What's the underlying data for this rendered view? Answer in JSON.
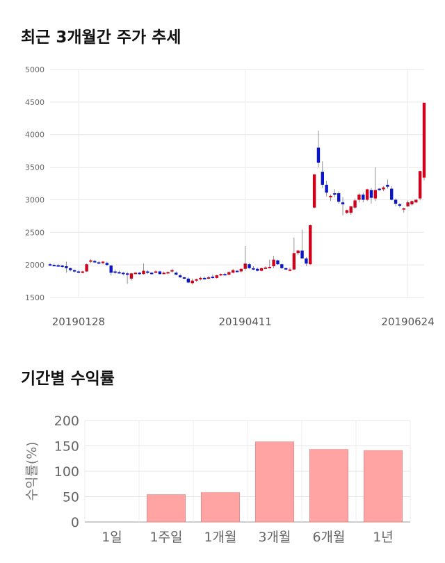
{
  "sections": {
    "price_title": "최근 3개월간 주가 추세",
    "returns_title": "기간별 수익률"
  },
  "colors": {
    "up": "#d0021b",
    "down": "#0a14c8",
    "bar": "#ffa3a3",
    "bar_border": "#e08080"
  },
  "chart_data": [
    {
      "type": "candlestick",
      "title": "최근 3개월간 주가 추세",
      "ylim": [
        1500,
        5000
      ],
      "yticks": [
        1500,
        2000,
        2500,
        3000,
        3500,
        4000,
        4500,
        5000
      ],
      "xtick_labels": [
        {
          "index": 7,
          "label": "20190128"
        },
        {
          "index": 48,
          "label": "20190411"
        },
        {
          "index": 88,
          "label": "20190624"
        }
      ],
      "grid": true,
      "candles": [
        {
          "o": 2010,
          "h": 2030,
          "l": 1990,
          "c": 2000
        },
        {
          "o": 2000,
          "h": 2020,
          "l": 1985,
          "c": 1995
        },
        {
          "o": 1995,
          "h": 2015,
          "l": 1980,
          "c": 1990
        },
        {
          "o": 1990,
          "h": 2000,
          "l": 1960,
          "c": 1975
        },
        {
          "o": 1980,
          "h": 2050,
          "l": 1880,
          "c": 1950
        },
        {
          "o": 1950,
          "h": 1960,
          "l": 1900,
          "c": 1920
        },
        {
          "o": 1920,
          "h": 1930,
          "l": 1880,
          "c": 1900
        },
        {
          "o": 1900,
          "h": 1920,
          "l": 1880,
          "c": 1890
        },
        {
          "o": 1890,
          "h": 1910,
          "l": 1870,
          "c": 1900
        },
        {
          "o": 1900,
          "h": 2020,
          "l": 1890,
          "c": 2010
        },
        {
          "o": 2060,
          "h": 2090,
          "l": 2030,
          "c": 2070
        },
        {
          "o": 2060,
          "h": 2080,
          "l": 2030,
          "c": 2040
        },
        {
          "o": 2040,
          "h": 2060,
          "l": 2020,
          "c": 2030
        },
        {
          "o": 2030,
          "h": 2060,
          "l": 2010,
          "c": 2050
        },
        {
          "o": 2030,
          "h": 2050,
          "l": 1980,
          "c": 2000
        },
        {
          "o": 1990,
          "h": 2000,
          "l": 1840,
          "c": 1880
        },
        {
          "o": 1900,
          "h": 1930,
          "l": 1860,
          "c": 1890
        },
        {
          "o": 1890,
          "h": 1910,
          "l": 1870,
          "c": 1880
        },
        {
          "o": 1880,
          "h": 1890,
          "l": 1840,
          "c": 1870
        },
        {
          "o": 1870,
          "h": 1890,
          "l": 1710,
          "c": 1860
        },
        {
          "o": 1790,
          "h": 1880,
          "l": 1760,
          "c": 1870
        },
        {
          "o": 1870,
          "h": 1890,
          "l": 1860,
          "c": 1880
        },
        {
          "o": 1880,
          "h": 1890,
          "l": 1850,
          "c": 1860
        },
        {
          "o": 1860,
          "h": 2020,
          "l": 1850,
          "c": 1910
        },
        {
          "o": 1900,
          "h": 1920,
          "l": 1860,
          "c": 1880
        },
        {
          "o": 1880,
          "h": 1890,
          "l": 1850,
          "c": 1870
        },
        {
          "o": 1880,
          "h": 1920,
          "l": 1870,
          "c": 1900
        },
        {
          "o": 1900,
          "h": 1910,
          "l": 1850,
          "c": 1860
        },
        {
          "o": 1870,
          "h": 1900,
          "l": 1860,
          "c": 1880
        },
        {
          "o": 1880,
          "h": 1900,
          "l": 1860,
          "c": 1890
        },
        {
          "o": 1900,
          "h": 1940,
          "l": 1880,
          "c": 1920
        },
        {
          "o": 1880,
          "h": 1900,
          "l": 1840,
          "c": 1850
        },
        {
          "o": 1840,
          "h": 1860,
          "l": 1800,
          "c": 1810
        },
        {
          "o": 1810,
          "h": 1820,
          "l": 1780,
          "c": 1790
        },
        {
          "o": 1790,
          "h": 1810,
          "l": 1720,
          "c": 1730
        },
        {
          "o": 1720,
          "h": 1790,
          "l": 1700,
          "c": 1760
        },
        {
          "o": 1760,
          "h": 1790,
          "l": 1740,
          "c": 1780
        },
        {
          "o": 1780,
          "h": 1820,
          "l": 1760,
          "c": 1800
        },
        {
          "o": 1800,
          "h": 1820,
          "l": 1780,
          "c": 1790
        },
        {
          "o": 1790,
          "h": 1830,
          "l": 1780,
          "c": 1810
        },
        {
          "o": 1820,
          "h": 1850,
          "l": 1790,
          "c": 1800
        },
        {
          "o": 1800,
          "h": 1850,
          "l": 1790,
          "c": 1840
        },
        {
          "o": 1840,
          "h": 1870,
          "l": 1830,
          "c": 1860
        },
        {
          "o": 1860,
          "h": 1880,
          "l": 1840,
          "c": 1850
        },
        {
          "o": 1850,
          "h": 1900,
          "l": 1840,
          "c": 1890
        },
        {
          "o": 1880,
          "h": 1940,
          "l": 1870,
          "c": 1920
        },
        {
          "o": 1910,
          "h": 1920,
          "l": 1890,
          "c": 1900
        },
        {
          "o": 1900,
          "h": 1950,
          "l": 1880,
          "c": 1940
        },
        {
          "o": 1940,
          "h": 2290,
          "l": 1910,
          "c": 2020
        },
        {
          "o": 2010,
          "h": 2030,
          "l": 1940,
          "c": 1950
        },
        {
          "o": 1950,
          "h": 1980,
          "l": 1920,
          "c": 1940
        },
        {
          "o": 1940,
          "h": 1960,
          "l": 1900,
          "c": 1910
        },
        {
          "o": 1910,
          "h": 1960,
          "l": 1900,
          "c": 1950
        },
        {
          "o": 1950,
          "h": 1980,
          "l": 1940,
          "c": 1960
        },
        {
          "o": 1960,
          "h": 2080,
          "l": 1950,
          "c": 1970
        },
        {
          "o": 1980,
          "h": 2140,
          "l": 1950,
          "c": 2080
        },
        {
          "o": 2070,
          "h": 2080,
          "l": 2000,
          "c": 2010
        },
        {
          "o": 2010,
          "h": 2020,
          "l": 1940,
          "c": 1950
        },
        {
          "o": 1950,
          "h": 1960,
          "l": 1920,
          "c": 1940
        },
        {
          "o": 1920,
          "h": 1960,
          "l": 1900,
          "c": 1930
        },
        {
          "o": 1930,
          "h": 2420,
          "l": 1920,
          "c": 2180
        },
        {
          "o": 2180,
          "h": 2230,
          "l": 2150,
          "c": 2220
        },
        {
          "o": 2220,
          "h": 2540,
          "l": 2120,
          "c": 2100
        },
        {
          "o": 2100,
          "h": 2120,
          "l": 1980,
          "c": 2020
        },
        {
          "o": 2010,
          "h": 2620,
          "l": 2000,
          "c": 2610
        },
        {
          "o": 2880,
          "h": 3390,
          "l": 2870,
          "c": 3390
        },
        {
          "o": 3800,
          "h": 4060,
          "l": 3500,
          "c": 3570
        },
        {
          "o": 3430,
          "h": 3590,
          "l": 3180,
          "c": 3230
        },
        {
          "o": 3230,
          "h": 3290,
          "l": 3050,
          "c": 3110
        },
        {
          "o": 3060,
          "h": 3080,
          "l": 2980,
          "c": 3060
        },
        {
          "o": 3100,
          "h": 3160,
          "l": 3040,
          "c": 3090
        },
        {
          "o": 3100,
          "h": 3130,
          "l": 2940,
          "c": 2970
        },
        {
          "o": 2960,
          "h": 3040,
          "l": 2760,
          "c": 2930
        },
        {
          "o": 2800,
          "h": 2850,
          "l": 2780,
          "c": 2840
        },
        {
          "o": 2800,
          "h": 2900,
          "l": 2770,
          "c": 2900
        },
        {
          "o": 2880,
          "h": 3020,
          "l": 2860,
          "c": 2990
        },
        {
          "o": 3000,
          "h": 3100,
          "l": 2960,
          "c": 3080
        },
        {
          "o": 3080,
          "h": 3110,
          "l": 2960,
          "c": 3000
        },
        {
          "o": 3000,
          "h": 3170,
          "l": 2980,
          "c": 3160
        },
        {
          "o": 3150,
          "h": 3180,
          "l": 2940,
          "c": 3030
        },
        {
          "o": 3020,
          "h": 3500,
          "l": 2980,
          "c": 3150
        },
        {
          "o": 3170,
          "h": 3180,
          "l": 3140,
          "c": 3150
        },
        {
          "o": 3160,
          "h": 3210,
          "l": 3130,
          "c": 3190
        },
        {
          "o": 3230,
          "h": 3310,
          "l": 3170,
          "c": 3200
        },
        {
          "o": 3170,
          "h": 3210,
          "l": 2990,
          "c": 3000
        },
        {
          "o": 3000,
          "h": 3020,
          "l": 2900,
          "c": 2940
        },
        {
          "o": 2930,
          "h": 2950,
          "l": 2880,
          "c": 2910
        },
        {
          "o": 2850,
          "h": 2880,
          "l": 2800,
          "c": 2870
        },
        {
          "o": 2900,
          "h": 2990,
          "l": 2890,
          "c": 2960
        },
        {
          "o": 2930,
          "h": 2990,
          "l": 2910,
          "c": 2980
        },
        {
          "o": 2960,
          "h": 3010,
          "l": 2950,
          "c": 3000
        },
        {
          "o": 3020,
          "h": 3440,
          "l": 2990,
          "c": 3440
        },
        {
          "o": 3340,
          "h": 4490,
          "l": 3300,
          "c": 4490
        }
      ]
    },
    {
      "type": "bar",
      "title": "기간별 수익률",
      "ylabel": "수익률(%)",
      "ylim": [
        0,
        200
      ],
      "yticks": [
        0,
        50,
        100,
        150,
        200
      ],
      "categories": [
        "1일",
        "1주일",
        "1개월",
        "3개월",
        "6개월",
        "1년"
      ],
      "values": [
        0,
        54,
        58,
        158,
        143,
        141
      ],
      "grid": true
    }
  ]
}
